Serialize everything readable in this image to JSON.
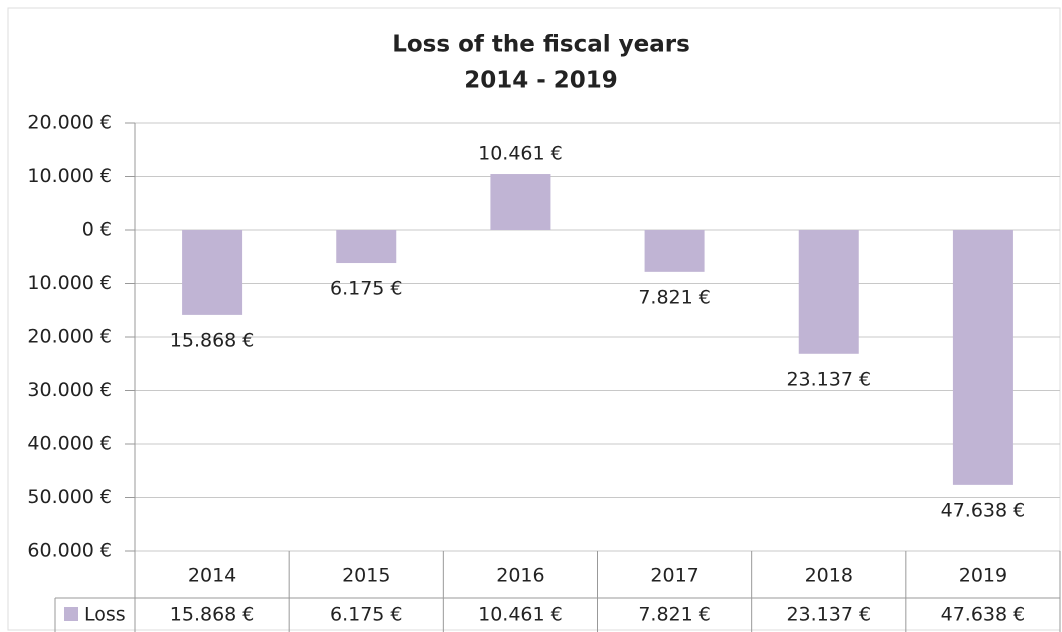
{
  "chart_data": {
    "type": "bar",
    "title": "Loss of the fiscal years",
    "subtitle": "2014 - 2019",
    "categories": [
      "2014",
      "2015",
      "2016",
      "2017",
      "2018",
      "2019"
    ],
    "series": [
      {
        "name": "Loss",
        "color": "#c0b4d4",
        "values": [
          -15868,
          -6175,
          10461,
          -7821,
          -23137,
          -47638
        ],
        "value_labels": [
          "15.868 €",
          "6.175 €",
          "10.461 €",
          "7.821 €",
          "23.137 €",
          "47.638 €"
        ]
      }
    ],
    "ylim": [
      -60000,
      20000
    ],
    "yticks": [
      {
        "value": 20000,
        "label": "20.000 €"
      },
      {
        "value": 10000,
        "label": "10.000 €"
      },
      {
        "value": 0,
        "label": "0 €"
      },
      {
        "value": -10000,
        "label": "10.000 €"
      },
      {
        "value": -20000,
        "label": "20.000 €"
      },
      {
        "value": -30000,
        "label": "30.000 €"
      },
      {
        "value": -40000,
        "label": "40.000 €"
      },
      {
        "value": -50000,
        "label": "50.000 €"
      },
      {
        "value": -60000,
        "label": "60.000 €"
      }
    ],
    "grid": true,
    "negative_label_color": "#e0362c",
    "data_table": true
  }
}
